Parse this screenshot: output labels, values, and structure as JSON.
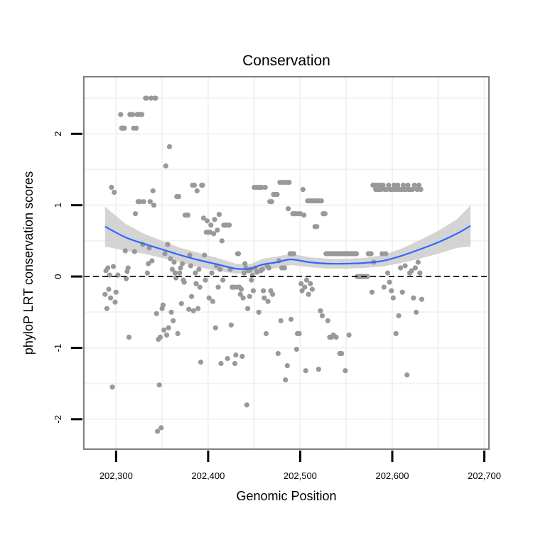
{
  "chart_data": {
    "type": "scatter",
    "title": "Conservation",
    "xlabel": "Genomic Position",
    "ylabel": "phyloP LRT conservation scores",
    "xlim": [
      202265,
      202705
    ],
    "ylim": [
      -2.42,
      2.8
    ],
    "xticks": [
      202300,
      202400,
      202500,
      202600,
      202700
    ],
    "xtick_labels": [
      "202,300",
      "202,400",
      "202,500",
      "202,600",
      "202,700"
    ],
    "yticks": [
      -2,
      -1,
      0,
      1,
      2
    ],
    "ytick_labels": [
      "-2",
      "-1",
      "0",
      "1",
      "2"
    ],
    "grid": true,
    "reference_line": {
      "y": 0,
      "style": "dashed"
    },
    "colors": {
      "points": "#999999",
      "smooth": "#3366ff",
      "band": "#cccccc",
      "grid": "#f2f2f2",
      "border": "#7f7f7f"
    },
    "points": [
      [
        202288,
        -0.25
      ],
      [
        202289,
        0.08
      ],
      [
        202290,
        -0.45
      ],
      [
        202291,
        0.12
      ],
      [
        202292,
        -0.18
      ],
      [
        202293,
        0.02
      ],
      [
        202294,
        -0.3
      ],
      [
        202295,
        1.25
      ],
      [
        202296,
        -1.55
      ],
      [
        202297,
        0.14
      ],
      [
        202298,
        1.18
      ],
      [
        202299,
        -0.36
      ],
      [
        202300,
        -0.22
      ],
      [
        202302,
        0.02
      ],
      [
        202305,
        2.27
      ],
      [
        202306,
        2.08
      ],
      [
        202307,
        2.08
      ],
      [
        202308,
        2.08
      ],
      [
        202309,
        2.08
      ],
      [
        202310,
        0.36
      ],
      [
        202311,
        -0.03
      ],
      [
        202312,
        0.07
      ],
      [
        202313,
        0.12
      ],
      [
        202314,
        -0.85
      ],
      [
        202315,
        2.27
      ],
      [
        202316,
        2.27
      ],
      [
        202317,
        2.27
      ],
      [
        202318,
        2.27
      ],
      [
        202319,
        2.08
      ],
      [
        202320,
        0.35
      ],
      [
        202321,
        0.88
      ],
      [
        202322,
        2.08
      ],
      [
        202323,
        2.27
      ],
      [
        202324,
        1.05
      ],
      [
        202325,
        2.27
      ],
      [
        202326,
        1.05
      ],
      [
        202327,
        2.27
      ],
      [
        202328,
        2.27
      ],
      [
        202329,
        0.45
      ],
      [
        202330,
        1.05
      ],
      [
        202332,
        2.5
      ],
      [
        202333,
        2.5
      ],
      [
        202334,
        0.05
      ],
      [
        202335,
        0.18
      ],
      [
        202336,
        0.4
      ],
      [
        202337,
        1.05
      ],
      [
        202338,
        2.5
      ],
      [
        202339,
        0.22
      ],
      [
        202340,
        1.2
      ],
      [
        202341,
        1.0
      ],
      [
        202342,
        2.5
      ],
      [
        202343,
        2.5
      ],
      [
        202344,
        -0.52
      ],
      [
        202345,
        -2.17
      ],
      [
        202346,
        -0.88
      ],
      [
        202347,
        -1.52
      ],
      [
        202348,
        -0.85
      ],
      [
        202349,
        -2.12
      ],
      [
        202350,
        -0.45
      ],
      [
        202351,
        -0.4
      ],
      [
        202352,
        -0.75
      ],
      [
        202353,
        0.32
      ],
      [
        202354,
        1.55
      ],
      [
        202355,
        -0.82
      ],
      [
        202356,
        0.45
      ],
      [
        202357,
        -0.72
      ],
      [
        202358,
        1.82
      ],
      [
        202359,
        0.25
      ],
      [
        202360,
        -0.5
      ],
      [
        202361,
        0.1
      ],
      [
        202362,
        -0.62
      ],
      [
        202363,
        0.2
      ],
      [
        202364,
        0.05
      ],
      [
        202365,
        -0.02
      ],
      [
        202366,
        1.12
      ],
      [
        202367,
        -0.8
      ],
      [
        202368,
        1.12
      ],
      [
        202369,
        0.05
      ],
      [
        202370,
        0.12
      ],
      [
        202371,
        -0.38
      ],
      [
        202372,
        0.18
      ],
      [
        202373,
        -0.05
      ],
      [
        202374,
        -0.08
      ],
      [
        202375,
        0.86
      ],
      [
        202376,
        0.86
      ],
      [
        202377,
        0.86
      ],
      [
        202378,
        0.86
      ],
      [
        202379,
        -0.46
      ],
      [
        202380,
        0.3
      ],
      [
        202381,
        0.15
      ],
      [
        202382,
        -0.28
      ],
      [
        202383,
        1.28
      ],
      [
        202384,
        -0.48
      ],
      [
        202385,
        1.28
      ],
      [
        202386,
        0.05
      ],
      [
        202387,
        -0.1
      ],
      [
        202388,
        1.2
      ],
      [
        202389,
        -0.45
      ],
      [
        202390,
        0.1
      ],
      [
        202391,
        -0.15
      ],
      [
        202392,
        -1.2
      ],
      [
        202393,
        1.28
      ],
      [
        202394,
        1.28
      ],
      [
        202395,
        0.82
      ],
      [
        202396,
        0.3
      ],
      [
        202397,
        -0.05
      ],
      [
        202398,
        0.62
      ],
      [
        202399,
        0.78
      ],
      [
        202400,
        0.62
      ],
      [
        202401,
        -0.3
      ],
      [
        202402,
        0.62
      ],
      [
        202403,
        0.72
      ],
      [
        202404,
        0.05
      ],
      [
        202405,
        -0.35
      ],
      [
        202406,
        0.6
      ],
      [
        202407,
        0.8
      ],
      [
        202408,
        -0.72
      ],
      [
        202409,
        0.15
      ],
      [
        202410,
        0.65
      ],
      [
        202411,
        -0.15
      ],
      [
        202412,
        0.87
      ],
      [
        202413,
        0.1
      ],
      [
        202414,
        -1.22
      ],
      [
        202415,
        0.5
      ],
      [
        202416,
        -0.05
      ],
      [
        202417,
        0.72
      ],
      [
        202418,
        0.72
      ],
      [
        202419,
        0.72
      ],
      [
        202420,
        0.72
      ],
      [
        202421,
        -1.15
      ],
      [
        202422,
        0.72
      ],
      [
        202423,
        0.72
      ],
      [
        202424,
        0.1
      ],
      [
        202425,
        -0.68
      ],
      [
        202426,
        -0.15
      ],
      [
        202427,
        -0.15
      ],
      [
        202428,
        -0.15
      ],
      [
        202429,
        -1.22
      ],
      [
        202430,
        -1.1
      ],
      [
        202431,
        -0.15
      ],
      [
        202432,
        0.32
      ],
      [
        202433,
        0.32
      ],
      [
        202434,
        -0.15
      ],
      [
        202435,
        -0.25
      ],
      [
        202436,
        -0.18
      ],
      [
        202437,
        -1.12
      ],
      [
        202438,
        -0.3
      ],
      [
        202439,
        0.05
      ],
      [
        202440,
        0.18
      ],
      [
        202441,
        0.12
      ],
      [
        202442,
        -1.8
      ],
      [
        202443,
        -0.45
      ],
      [
        202444,
        0.08
      ],
      [
        202445,
        -0.28
      ],
      [
        202446,
        0.1
      ],
      [
        202447,
        -0.05
      ],
      [
        202448,
        0.02
      ],
      [
        202449,
        -0.2
      ],
      [
        202450,
        1.25
      ],
      [
        202451,
        0.12
      ],
      [
        202452,
        1.25
      ],
      [
        202453,
        0.06
      ],
      [
        202454,
        1.25
      ],
      [
        202455,
        -0.5
      ],
      [
        202456,
        1.25
      ],
      [
        202457,
        0.08
      ],
      [
        202458,
        1.25
      ],
      [
        202459,
        0.1
      ],
      [
        202460,
        -0.2
      ],
      [
        202461,
        -0.3
      ],
      [
        202462,
        1.25
      ],
      [
        202463,
        -0.8
      ],
      [
        202464,
        0.15
      ],
      [
        202465,
        -0.35
      ],
      [
        202466,
        0.12
      ],
      [
        202467,
        1.05
      ],
      [
        202468,
        -0.2
      ],
      [
        202469,
        1.05
      ],
      [
        202470,
        -0.25
      ],
      [
        202471,
        1.15
      ],
      [
        202472,
        1.15
      ],
      [
        202473,
        1.15
      ],
      [
        202474,
        1.15
      ],
      [
        202475,
        1.15
      ],
      [
        202476,
        -1.08
      ],
      [
        202477,
        0.22
      ],
      [
        202478,
        1.32
      ],
      [
        202479,
        -0.62
      ],
      [
        202480,
        0.12
      ],
      [
        202481,
        1.32
      ],
      [
        202482,
        1.32
      ],
      [
        202483,
        0.12
      ],
      [
        202484,
        -1.45
      ],
      [
        202485,
        1.32
      ],
      [
        202486,
        -1.25
      ],
      [
        202487,
        0.95
      ],
      [
        202488,
        1.32
      ],
      [
        202489,
        0.32
      ],
      [
        202490,
        -0.6
      ],
      [
        202491,
        0.32
      ],
      [
        202492,
        0.88
      ],
      [
        202493,
        0.32
      ],
      [
        202494,
        0.88
      ],
      [
        202495,
        0.88
      ],
      [
        202496,
        -1.02
      ],
      [
        202497,
        -0.8
      ],
      [
        202498,
        0.88
      ],
      [
        202499,
        -0.8
      ],
      [
        202500,
        0.88
      ],
      [
        202501,
        -0.1
      ],
      [
        202502,
        -0.2
      ],
      [
        202503,
        1.22
      ],
      [
        202504,
        0.86
      ],
      [
        202505,
        -0.15
      ],
      [
        202506,
        -1.32
      ],
      [
        202507,
        -0.05
      ],
      [
        202508,
        1.06
      ],
      [
        202509,
        -0.25
      ],
      [
        202510,
        1.06
      ],
      [
        202511,
        -0.1
      ],
      [
        202512,
        1.06
      ],
      [
        202513,
        -0.18
      ],
      [
        202514,
        1.06
      ],
      [
        202515,
        1.06
      ],
      [
        202516,
        0.7
      ],
      [
        202517,
        1.06
      ],
      [
        202518,
        0.7
      ],
      [
        202519,
        1.06
      ],
      [
        202520,
        -1.3
      ],
      [
        202521,
        1.06
      ],
      [
        202522,
        -0.48
      ],
      [
        202523,
        1.06
      ],
      [
        202524,
        -0.55
      ],
      [
        202525,
        0.88
      ],
      [
        202526,
        0.88
      ],
      [
        202527,
        0.88
      ],
      [
        202528,
        0.32
      ],
      [
        202529,
        0.32
      ],
      [
        202530,
        -0.62
      ],
      [
        202531,
        0.32
      ],
      [
        202532,
        -0.85
      ],
      [
        202533,
        0.32
      ],
      [
        202534,
        -0.85
      ],
      [
        202535,
        0.32
      ],
      [
        202536,
        -0.82
      ],
      [
        202537,
        0.32
      ],
      [
        202538,
        0.32
      ],
      [
        202539,
        -0.85
      ],
      [
        202540,
        0.32
      ],
      [
        202541,
        0.32
      ],
      [
        202542,
        0.32
      ],
      [
        202543,
        -1.08
      ],
      [
        202544,
        0.32
      ],
      [
        202545,
        -1.08
      ],
      [
        202546,
        0.32
      ],
      [
        202547,
        0.32
      ],
      [
        202548,
        0.32
      ],
      [
        202549,
        -1.32
      ],
      [
        202550,
        0.32
      ],
      [
        202551,
        0.32
      ],
      [
        202552,
        0.32
      ],
      [
        202553,
        -0.82
      ],
      [
        202554,
        0.32
      ],
      [
        202555,
        0.32
      ],
      [
        202556,
        0.32
      ],
      [
        202557,
        0.32
      ],
      [
        202558,
        0.32
      ],
      [
        202559,
        0.32
      ],
      [
        202560,
        0.32
      ],
      [
        202561,
        0.32
      ],
      [
        202562,
        0.0
      ],
      [
        202563,
        0.0
      ],
      [
        202564,
        0.0
      ],
      [
        202565,
        0.0
      ],
      [
        202566,
        0.0
      ],
      [
        202567,
        0.0
      ],
      [
        202568,
        0.0
      ],
      [
        202569,
        0.0
      ],
      [
        202570,
        0.0
      ],
      [
        202571,
        0.0
      ],
      [
        202572,
        0.0
      ],
      [
        202573,
        0.0
      ],
      [
        202574,
        0.32
      ],
      [
        202575,
        0.32
      ],
      [
        202576,
        0.32
      ],
      [
        202577,
        0.32
      ],
      [
        202578,
        -0.22
      ],
      [
        202579,
        1.28
      ],
      [
        202580,
        0.2
      ],
      [
        202581,
        1.28
      ],
      [
        202582,
        1.22
      ],
      [
        202583,
        1.28
      ],
      [
        202584,
        1.22
      ],
      [
        202585,
        1.28
      ],
      [
        202586,
        1.22
      ],
      [
        202587,
        1.28
      ],
      [
        202588,
        1.22
      ],
      [
        202589,
        0.32
      ],
      [
        202590,
        1.28
      ],
      [
        202591,
        -0.15
      ],
      [
        202592,
        1.22
      ],
      [
        202593,
        0.32
      ],
      [
        202594,
        1.22
      ],
      [
        202595,
        0.05
      ],
      [
        202596,
        1.28
      ],
      [
        202597,
        -0.08
      ],
      [
        202598,
        1.22
      ],
      [
        202599,
        -0.2
      ],
      [
        202600,
        1.22
      ],
      [
        202601,
        -0.3
      ],
      [
        202602,
        1.28
      ],
      [
        202603,
        1.22
      ],
      [
        202604,
        -0.8
      ],
      [
        202605,
        1.22
      ],
      [
        202606,
        1.28
      ],
      [
        202607,
        -0.55
      ],
      [
        202608,
        1.22
      ],
      [
        202609,
        0.12
      ],
      [
        202610,
        1.22
      ],
      [
        202611,
        -0.22
      ],
      [
        202612,
        1.28
      ],
      [
        202613,
        1.22
      ],
      [
        202614,
        0.15
      ],
      [
        202615,
        1.22
      ],
      [
        202616,
        -1.38
      ],
      [
        202617,
        1.28
      ],
      [
        202618,
        1.22
      ],
      [
        202619,
        0.05
      ],
      [
        202620,
        1.22
      ],
      [
        202621,
        0.08
      ],
      [
        202622,
        1.22
      ],
      [
        202623,
        -0.3
      ],
      [
        202624,
        1.28
      ],
      [
        202625,
        0.12
      ],
      [
        202626,
        -0.5
      ],
      [
        202627,
        1.22
      ],
      [
        202628,
        0.2
      ],
      [
        202629,
        1.28
      ],
      [
        202630,
        0.05
      ],
      [
        202631,
        1.22
      ],
      [
        202632,
        -0.32
      ]
    ],
    "smooth": {
      "x": [
        202288,
        202310,
        202330,
        202350,
        202370,
        202390,
        202410,
        202430,
        202445,
        202460,
        202475,
        202490,
        202510,
        202530,
        202550,
        202570,
        202590,
        202610,
        202630,
        202650,
        202670,
        202685
      ],
      "y": [
        0.7,
        0.55,
        0.46,
        0.38,
        0.3,
        0.23,
        0.17,
        0.11,
        0.11,
        0.17,
        0.2,
        0.24,
        0.2,
        0.18,
        0.18,
        0.19,
        0.22,
        0.29,
        0.38,
        0.48,
        0.6,
        0.71
      ],
      "ci_low": [
        0.42,
        0.36,
        0.32,
        0.26,
        0.2,
        0.13,
        0.08,
        0.04,
        0.05,
        0.09,
        0.12,
        0.16,
        0.13,
        0.11,
        0.11,
        0.12,
        0.14,
        0.19,
        0.25,
        0.32,
        0.4,
        0.42
      ],
      "ci_high": [
        0.98,
        0.74,
        0.6,
        0.5,
        0.4,
        0.33,
        0.26,
        0.18,
        0.17,
        0.25,
        0.28,
        0.32,
        0.27,
        0.25,
        0.25,
        0.26,
        0.3,
        0.39,
        0.51,
        0.64,
        0.8,
        1.0
      ]
    }
  }
}
